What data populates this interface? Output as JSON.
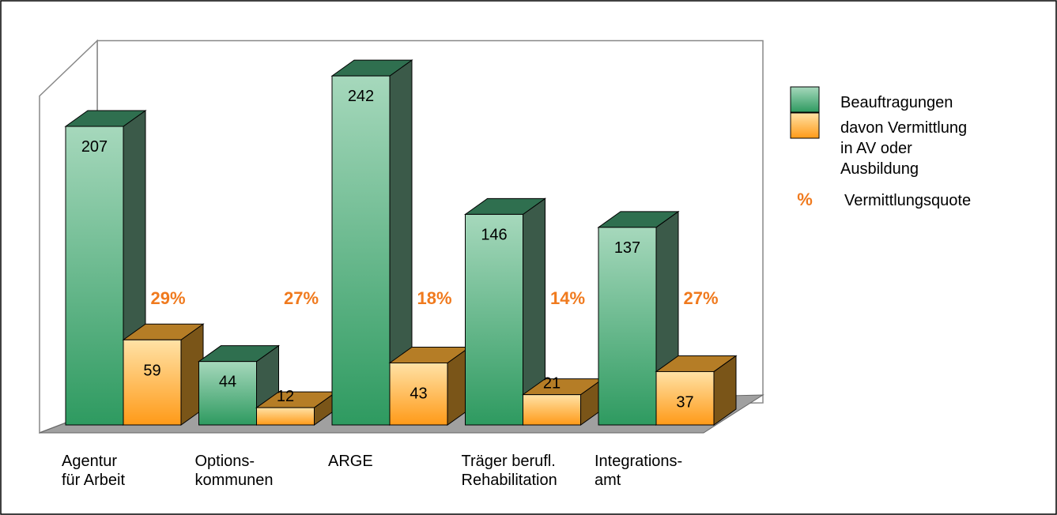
{
  "chart_data": {
    "type": "bar3d",
    "categories": [
      "Agentur\nfür Arbeit",
      "Options-\nkommunen",
      "ARGE",
      "Träger berufl.\nRehabilitation",
      "Integrations-\namt"
    ],
    "series": [
      {
        "name": "Beauftragungen",
        "color": "#3aa86a",
        "values": [
          207,
          44,
          242,
          146,
          137
        ]
      },
      {
        "name": "davon Vermittlung\nin AV oder\nAusbildung",
        "color": "#ffa526",
        "values": [
          59,
          12,
          43,
          21,
          37
        ]
      },
      {
        "name": "Vermittlungsquote",
        "symbol": "%",
        "color": "#f07a1e",
        "values": [
          29,
          27,
          18,
          14,
          27
        ],
        "value_labels": [
          "29%",
          "27%",
          "18%",
          "14%",
          "27%"
        ]
      }
    ],
    "ylim": [
      0,
      250
    ]
  }
}
